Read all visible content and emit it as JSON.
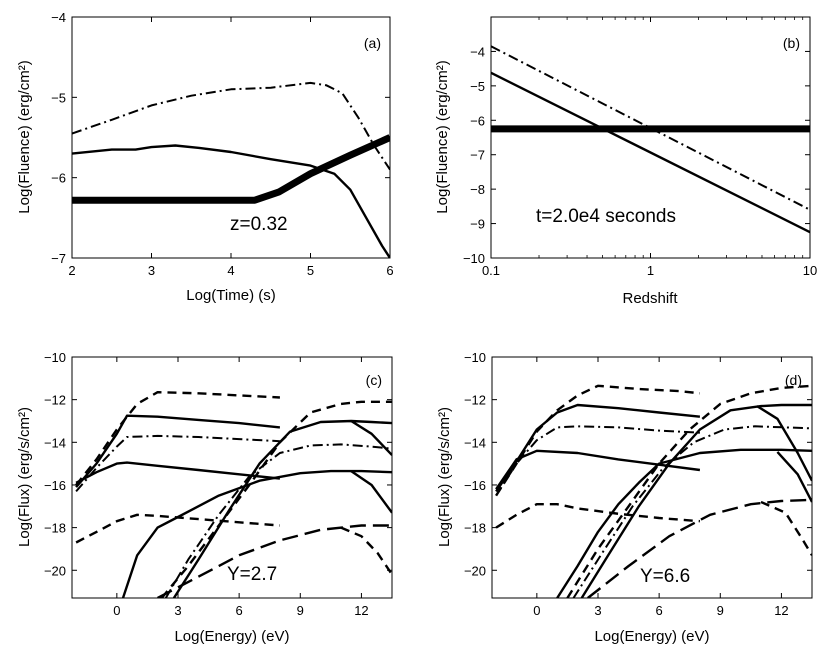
{
  "figure": {
    "panel_count": 4
  },
  "chart_data": [
    {
      "id": "a",
      "type": "line",
      "panel_label": "(a)",
      "annotation": "z=0.32",
      "xlabel": "Log(Time) (s)",
      "ylabel": "Log(Fluence) (erg/cm²)",
      "xscale": "linear",
      "xlim": [
        2,
        6
      ],
      "ylim": [
        -7,
        -4
      ],
      "xticks": [
        2,
        3,
        4,
        5,
        6
      ],
      "xtick_labels": [
        "2",
        "3",
        "4",
        "5",
        "6"
      ],
      "yticks": [
        -7,
        -6,
        -5,
        -4
      ],
      "ytick_labels": [
        "−7",
        "−6",
        "−5",
        "−4"
      ],
      "series": [
        {
          "name": "dash-dot",
          "style": "dashdot",
          "x": [
            2.0,
            2.5,
            3.0,
            3.5,
            4.0,
            4.5,
            5.0,
            5.2,
            5.4,
            5.6,
            5.8,
            6.0
          ],
          "y": [
            -5.45,
            -5.28,
            -5.1,
            -4.98,
            -4.9,
            -4.88,
            -4.82,
            -4.85,
            -4.95,
            -5.25,
            -5.6,
            -5.9
          ]
        },
        {
          "name": "solid",
          "style": "solid",
          "x": [
            2.0,
            2.5,
            2.8,
            3.0,
            3.3,
            3.6,
            4.0,
            4.5,
            5.0,
            5.3,
            5.5,
            5.7,
            5.9,
            6.0
          ],
          "y": [
            -5.7,
            -5.65,
            -5.65,
            -5.62,
            -5.6,
            -5.63,
            -5.68,
            -5.77,
            -5.85,
            -5.95,
            -6.15,
            -6.5,
            -6.85,
            -7.0
          ]
        },
        {
          "name": "thick",
          "style": "thick",
          "x": [
            2.0,
            4.3,
            4.6,
            5.0,
            5.5,
            6.0
          ],
          "y": [
            -6.28,
            -6.28,
            -6.18,
            -5.95,
            -5.72,
            -5.5
          ]
        }
      ]
    },
    {
      "id": "b",
      "type": "line",
      "panel_label": "(b)",
      "annotation": "t=2.0e4 seconds",
      "xlabel": "Redshift",
      "ylabel": "Log(Fluence) (erg/cm²)",
      "xscale": "log",
      "xlim": [
        0.1,
        10
      ],
      "ylim": [
        -10,
        -3
      ],
      "xticks": [
        0.1,
        1,
        10
      ],
      "xtick_labels": [
        "0.1",
        "1",
        "10"
      ],
      "yticks": [
        -10,
        -9,
        -8,
        -7,
        -6,
        -5,
        -4
      ],
      "ytick_labels": [
        "−10",
        "−9",
        "−8",
        "−7",
        "−6",
        "−5",
        "−4"
      ],
      "series": [
        {
          "name": "dash-dot",
          "style": "dashdot",
          "x": [
            0.1,
            10
          ],
          "y": [
            -3.85,
            -8.6
          ]
        },
        {
          "name": "solid",
          "style": "solid",
          "x": [
            0.1,
            10
          ],
          "y": [
            -4.62,
            -9.25
          ]
        },
        {
          "name": "thick",
          "style": "thick",
          "x": [
            0.1,
            10
          ],
          "y": [
            -6.25,
            -6.25
          ]
        }
      ]
    },
    {
      "id": "c",
      "type": "line",
      "panel_label": "(c)",
      "annotation": "Y=2.7",
      "xlabel": "Log(Energy) (eV)",
      "ylabel": "Log(Flux) (erg/s/cm²)",
      "xscale": "linear",
      "xlim": [
        -2.2,
        13.5
      ],
      "ylim": [
        -21.3,
        -10
      ],
      "xticks": [
        0,
        3,
        6,
        9,
        12
      ],
      "xtick_labels": [
        "0",
        "3",
        "6",
        "9",
        "12"
      ],
      "yticks": [
        -20,
        -18,
        -16,
        -14,
        -12,
        -10
      ],
      "ytick_labels": [
        "−20",
        "−18",
        "−16",
        "−14",
        "−12",
        "−10"
      ],
      "series": [
        {
          "name": "dashed syn upper",
          "style": "dashed",
          "x": [
            -2.0,
            -1.0,
            0.0,
            1.0,
            2.0,
            4.0,
            6.0,
            8.0
          ],
          "y": [
            -16.0,
            -14.8,
            -13.4,
            -12.2,
            -11.65,
            -11.7,
            -11.8,
            -11.9
          ]
        },
        {
          "name": "solid syn upper",
          "style": "solid",
          "x": [
            -2.0,
            -1.0,
            0.0,
            0.5,
            2.0,
            4.0,
            6.0,
            8.0
          ],
          "y": [
            -16.1,
            -15.0,
            -13.6,
            -12.75,
            -12.8,
            -12.95,
            -13.1,
            -13.3
          ]
        },
        {
          "name": "dashdot syn upper",
          "style": "dashdot",
          "x": [
            -2.0,
            -1.0,
            0.0,
            0.5,
            2.0,
            4.0,
            6.0,
            8.0
          ],
          "y": [
            -16.3,
            -15.2,
            -14.2,
            -13.75,
            -13.7,
            -13.75,
            -13.85,
            -13.95
          ]
        },
        {
          "name": "solid syn lower",
          "style": "solid",
          "x": [
            -2.0,
            -1.0,
            0.0,
            0.5,
            2.0,
            4.0,
            6.0,
            8.0
          ],
          "y": [
            -15.9,
            -15.4,
            -15.0,
            -14.95,
            -15.1,
            -15.3,
            -15.5,
            -15.7
          ]
        },
        {
          "name": "dashed syn lower",
          "style": "dashed",
          "x": [
            -2.0,
            -1.0,
            0.0,
            1.0,
            2.0,
            4.0,
            6.0,
            8.0
          ],
          "y": [
            -18.7,
            -18.2,
            -17.7,
            -17.4,
            -17.45,
            -17.6,
            -17.75,
            -17.9
          ]
        },
        {
          "name": "dashed IC upper",
          "style": "dashed",
          "x": [
            2.2,
            3.5,
            5.0,
            6.5,
            8.0,
            9.5,
            11.0,
            12.0,
            13.5
          ],
          "y": [
            -21.3,
            -19.8,
            -17.9,
            -16.0,
            -14.0,
            -12.6,
            -12.2,
            -12.1,
            -12.1
          ]
        },
        {
          "name": "solid IC upper",
          "style": "solid",
          "x": [
            2.8,
            4.0,
            5.5,
            7.0,
            8.5,
            10.0,
            11.5,
            12.5,
            13.5
          ],
          "y": [
            -21.3,
            -19.5,
            -17.2,
            -15.0,
            -13.5,
            -13.05,
            -13.0,
            -13.05,
            -13.1
          ]
        },
        {
          "name": "solid IC upper cutoff",
          "style": "solid",
          "x": [
            11.5,
            12.5,
            13.5
          ],
          "y": [
            -13.0,
            -13.6,
            -14.6
          ]
        },
        {
          "name": "dashdot IC",
          "style": "dashdot",
          "x": [
            2.4,
            3.5,
            5.0,
            6.5,
            8.0,
            9.5,
            11.0,
            12.5,
            13.5
          ],
          "y": [
            -21.3,
            -19.5,
            -17.4,
            -15.6,
            -14.5,
            -14.15,
            -14.1,
            -14.2,
            -14.3
          ]
        },
        {
          "name": "solid IC lower",
          "style": "solid",
          "x": [
            0.3,
            1.0,
            2.0,
            3.0,
            5.0,
            7.0,
            9.0,
            10.5,
            12.0,
            13.5
          ],
          "y": [
            -21.3,
            -19.3,
            -18.0,
            -17.5,
            -16.5,
            -15.8,
            -15.45,
            -15.35,
            -15.35,
            -15.4
          ]
        },
        {
          "name": "solid IC lower cutoff",
          "style": "solid",
          "x": [
            11.5,
            12.5,
            13.5
          ],
          "y": [
            -15.35,
            -16.0,
            -17.3
          ]
        },
        {
          "name": "long dash IC bottom",
          "style": "longdash",
          "x": [
            2.0,
            4.0,
            6.0,
            8.0,
            10.0,
            12.0,
            13.5
          ],
          "y": [
            -21.3,
            -20.3,
            -19.3,
            -18.6,
            -18.1,
            -17.9,
            -17.9
          ]
        },
        {
          "name": "dashed cutoff bottom",
          "style": "dashed",
          "x": [
            11.0,
            12.0,
            12.8,
            13.5
          ],
          "y": [
            -18.0,
            -18.4,
            -19.2,
            -20.2
          ]
        }
      ]
    },
    {
      "id": "d",
      "type": "line",
      "panel_label": "(d)",
      "annotation": "Y=6.6",
      "xlabel": "Log(Energy) (eV)",
      "ylabel": "Log(Flux) (erg/s/cm²)",
      "xscale": "linear",
      "xlim": [
        -2.2,
        13.5
      ],
      "ylim": [
        -21.3,
        -10
      ],
      "xticks": [
        0,
        3,
        6,
        9,
        12
      ],
      "xtick_labels": [
        "0",
        "3",
        "6",
        "9",
        "12"
      ],
      "yticks": [
        -20,
        -18,
        -16,
        -14,
        -12,
        -10
      ],
      "ytick_labels": [
        "−20",
        "−18",
        "−16",
        "−14",
        "−12",
        "−10"
      ],
      "series": [
        {
          "name": "dashed syn upper",
          "style": "dashed",
          "x": [
            -2.0,
            -1.0,
            0.0,
            1.0,
            2.0,
            3.0,
            5.0,
            7.0,
            8.0
          ],
          "y": [
            -16.5,
            -15.0,
            -13.5,
            -12.5,
            -11.8,
            -11.35,
            -11.5,
            -11.6,
            -11.7
          ]
        },
        {
          "name": "solid syn upper",
          "style": "solid",
          "x": [
            -2.0,
            -1.0,
            0.0,
            1.0,
            2.0,
            4.0,
            6.0,
            8.0
          ],
          "y": [
            -16.3,
            -14.9,
            -13.4,
            -12.6,
            -12.25,
            -12.4,
            -12.6,
            -12.8
          ]
        },
        {
          "name": "dashdot syn upper",
          "style": "dashdot",
          "x": [
            -2.0,
            -1.0,
            0.0,
            1.0,
            2.0,
            4.0,
            6.0,
            8.0
          ],
          "y": [
            -16.5,
            -15.0,
            -13.9,
            -13.3,
            -13.25,
            -13.3,
            -13.45,
            -13.55
          ]
        },
        {
          "name": "solid syn lower",
          "style": "solid",
          "x": [
            -2.0,
            -1.0,
            0.0,
            2.0,
            4.0,
            6.0,
            8.0
          ],
          "y": [
            -16.2,
            -14.8,
            -14.4,
            -14.5,
            -14.8,
            -15.05,
            -15.3
          ]
        },
        {
          "name": "dashed syn lower",
          "style": "dashed",
          "x": [
            -2.0,
            -1.0,
            0.0,
            1.0,
            2.0,
            4.0,
            6.0,
            8.0
          ],
          "y": [
            -18.0,
            -17.4,
            -16.9,
            -16.9,
            -17.1,
            -17.35,
            -17.55,
            -17.7
          ]
        },
        {
          "name": "dashed IC upper",
          "style": "dashed",
          "x": [
            1.5,
            3.0,
            4.5,
            6.0,
            7.5,
            9.0,
            10.5,
            12.0,
            13.5
          ],
          "y": [
            -21.3,
            -19.0,
            -17.0,
            -15.0,
            -13.4,
            -12.2,
            -11.7,
            -11.45,
            -11.35
          ]
        },
        {
          "name": "solid IC upper",
          "style": "solid",
          "x": [
            2.2,
            3.5,
            5.0,
            6.5,
            8.0,
            9.5,
            11.0,
            12.0,
            13.5
          ],
          "y": [
            -21.3,
            -19.3,
            -17.0,
            -15.0,
            -13.4,
            -12.5,
            -12.3,
            -12.25,
            -12.25
          ]
        },
        {
          "name": "solid IC upper cutoff",
          "style": "solid",
          "x": [
            10.8,
            11.8,
            12.8,
            13.5
          ],
          "y": [
            -12.3,
            -12.9,
            -14.5,
            -15.8
          ]
        },
        {
          "name": "dashdot IC",
          "style": "dashdot",
          "x": [
            1.8,
            3.2,
            4.7,
            6.2,
            7.7,
            9.2,
            10.7,
            12.2,
            13.5
          ],
          "y": [
            -21.3,
            -19.2,
            -17.0,
            -15.2,
            -14.0,
            -13.4,
            -13.25,
            -13.3,
            -13.35
          ]
        },
        {
          "name": "solid IC lower",
          "style": "solid",
          "x": [
            1.0,
            2.0,
            3.0,
            4.0,
            5.0,
            6.0,
            8.0,
            10.0,
            12.0,
            13.5
          ],
          "y": [
            -21.3,
            -19.8,
            -18.2,
            -16.9,
            -15.9,
            -15.0,
            -14.5,
            -14.35,
            -14.35,
            -14.4
          ]
        },
        {
          "name": "solid IC lower cutoff",
          "style": "solid",
          "x": [
            11.8,
            12.8,
            13.5
          ],
          "y": [
            -14.45,
            -15.5,
            -16.8
          ]
        },
        {
          "name": "long dash IC bottom",
          "style": "longdash",
          "x": [
            2.5,
            4.5,
            6.5,
            8.5,
            10.5,
            12.0,
            13.5
          ],
          "y": [
            -21.3,
            -19.8,
            -18.4,
            -17.4,
            -16.9,
            -16.75,
            -16.7
          ]
        },
        {
          "name": "dashed cutoff bottom",
          "style": "dashed",
          "x": [
            11.0,
            12.2,
            13.0,
            13.5
          ],
          "y": [
            -16.8,
            -17.3,
            -18.5,
            -19.3
          ]
        }
      ]
    }
  ]
}
